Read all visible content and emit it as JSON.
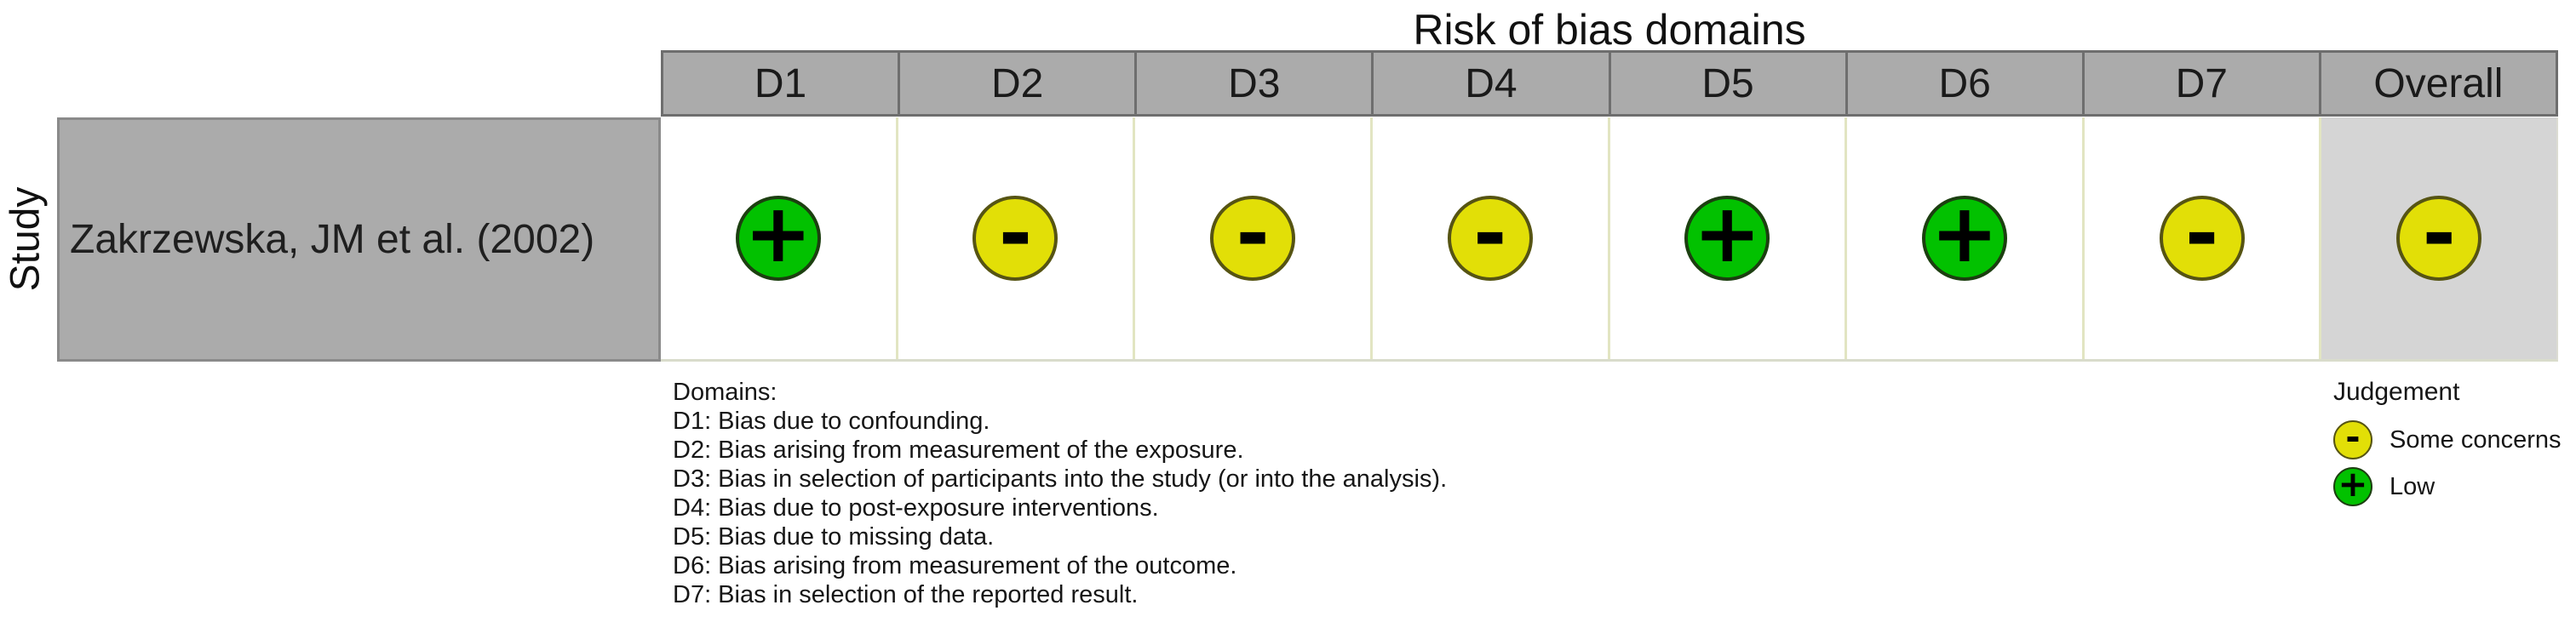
{
  "figure": {
    "title": "Risk of bias domains",
    "y_axis_label": "Study"
  },
  "columns": [
    "D1",
    "D2",
    "D3",
    "D4",
    "D5",
    "D6",
    "D7",
    "Overall"
  ],
  "study": {
    "name": "Zakrzewska, JM et al. (2002)",
    "assessments": [
      {
        "domain": "D1",
        "judgement": "Low",
        "symbol": "+",
        "css": "circle low"
      },
      {
        "domain": "D2",
        "judgement": "Some concerns",
        "symbol": "-",
        "css": "circle some"
      },
      {
        "domain": "D3",
        "judgement": "Some concerns",
        "symbol": "-",
        "css": "circle some"
      },
      {
        "domain": "D4",
        "judgement": "Some concerns",
        "symbol": "-",
        "css": "circle some"
      },
      {
        "domain": "D5",
        "judgement": "Low",
        "symbol": "+",
        "css": "circle low"
      },
      {
        "domain": "D6",
        "judgement": "Low",
        "symbol": "+",
        "css": "circle low"
      },
      {
        "domain": "D7",
        "judgement": "Some concerns",
        "symbol": "-",
        "css": "circle some"
      },
      {
        "domain": "Overall",
        "judgement": "Some concerns",
        "symbol": "-",
        "css": "circle some"
      }
    ]
  },
  "domains_key": {
    "heading": "Domains:",
    "items": [
      "D1: Bias due to confounding.",
      "D2: Bias arising from measurement of the exposure.",
      "D3: Bias in selection of participants into the study (or into the analysis).",
      "D4: Bias due to post-exposure interventions.",
      "D5: Bias due to missing data.",
      "D6: Bias arising from measurement of the outcome.",
      "D7: Bias in selection of the reported result."
    ]
  },
  "legend": {
    "title": "Judgement",
    "items": [
      {
        "label": "Some concerns",
        "symbol": "-",
        "css": "legend-circle some"
      },
      {
        "label": "Low",
        "symbol": "+",
        "css": "legend-circle low"
      }
    ]
  },
  "colors": {
    "low_green": "#02C100",
    "some_concerns_yellow": "#E2DF07",
    "header_gray": "#ABABAB",
    "study_cell_gray": "#ABABAB",
    "overall_column_gray": "#D5D5D5"
  },
  "chart_data": {
    "type": "heatmap",
    "title": "Risk of bias domains",
    "x_categories": [
      "D1",
      "D2",
      "D3",
      "D4",
      "D5",
      "D6",
      "D7",
      "Overall"
    ],
    "y_categories": [
      "Zakrzewska, JM et al. (2002)"
    ],
    "values": [
      [
        "Low",
        "Some concerns",
        "Some concerns",
        "Some concerns",
        "Low",
        "Low",
        "Some concerns",
        "Some concerns"
      ]
    ],
    "cell_symbols": [
      [
        "+",
        "-",
        "-",
        "-",
        "+",
        "+",
        "-",
        "-"
      ]
    ],
    "legend_entries": [
      "Some concerns",
      "Low"
    ],
    "legend_position": "bottom-right",
    "grid": false
  }
}
